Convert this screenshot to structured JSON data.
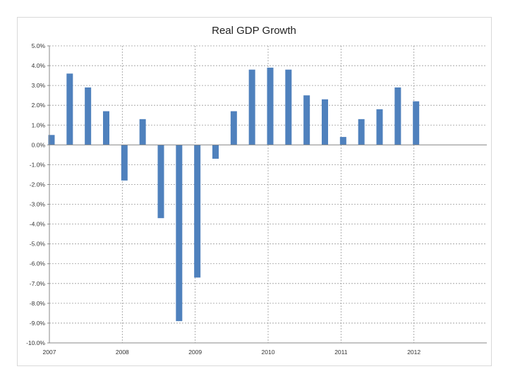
{
  "chart_data": {
    "type": "bar",
    "title": "Real GDP Growth",
    "xlabel": "",
    "ylabel": "",
    "ylim": [
      -10,
      5
    ],
    "yticks": [
      5,
      4,
      3,
      2,
      1,
      0,
      -1,
      -2,
      -3,
      -4,
      -5,
      -6,
      -7,
      -8,
      -9,
      -10
    ],
    "ytick_labels": [
      "5.0%",
      "4.0%",
      "3.0%",
      "2.0%",
      "1.0%",
      "0.0%",
      "-1.0%",
      "-2.0%",
      "-3.0%",
      "-4.0%",
      "-5.0%",
      "-6.0%",
      "-7.0%",
      "-8.0%",
      "-9.0%",
      "-10.0%"
    ],
    "xlim": [
      2007,
      2013
    ],
    "xticks": [
      2007,
      2008,
      2009,
      2010,
      2011,
      2012
    ],
    "xtick_labels": [
      "2007",
      "2008",
      "2009",
      "2010",
      "2011",
      "2012"
    ],
    "x": [
      2007.0,
      2007.25,
      2007.5,
      2007.75,
      2008.0,
      2008.25,
      2008.5,
      2008.75,
      2009.0,
      2009.25,
      2009.5,
      2009.75,
      2010.0,
      2010.25,
      2010.5,
      2010.75,
      2011.0,
      2011.25,
      2011.5,
      2011.75,
      2012.0
    ],
    "values": [
      0.5,
      3.6,
      2.9,
      1.7,
      -1.8,
      1.3,
      -3.7,
      -8.9,
      -6.7,
      -0.7,
      1.7,
      3.8,
      3.9,
      3.8,
      2.5,
      2.3,
      0.4,
      1.3,
      1.8,
      2.9,
      2.2
    ],
    "bar_color": "#4f81bd",
    "grid": true,
    "legend": "none"
  }
}
